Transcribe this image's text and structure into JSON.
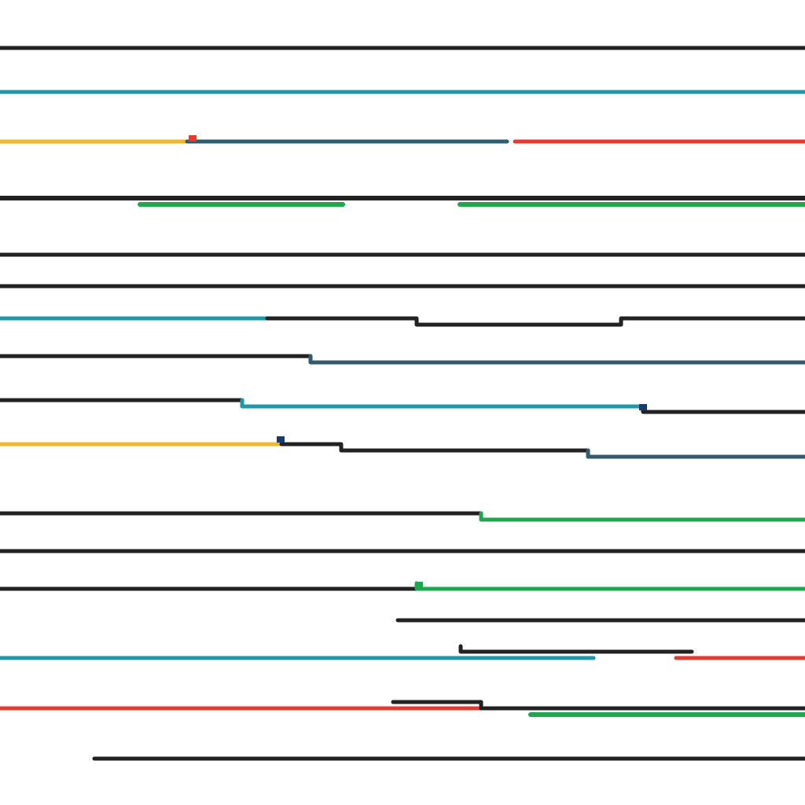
{
  "palette": {
    "black": "#222222",
    "teal": "#1E99A6",
    "yellow": "#F5B52A",
    "slate": "#2F5D6E",
    "red": "#E8392E",
    "green": "#1FA84B",
    "navy": "#1B3A6B"
  },
  "lines": [
    {
      "id": "line-1",
      "segments": [
        "black"
      ]
    },
    {
      "id": "line-2",
      "segments": [
        "teal"
      ]
    },
    {
      "id": "line-3",
      "segments": [
        "yellow",
        "slate",
        "red"
      ]
    },
    {
      "id": "line-4",
      "segments": [
        "black",
        "green",
        "green"
      ]
    },
    {
      "id": "line-5",
      "segments": [
        "black"
      ]
    },
    {
      "id": "line-6",
      "segments": [
        "black"
      ]
    },
    {
      "id": "line-7",
      "segments": [
        "teal",
        "black"
      ]
    },
    {
      "id": "line-8",
      "segments": [
        "black",
        "slate"
      ]
    },
    {
      "id": "line-9",
      "segments": [
        "black",
        "teal",
        "black"
      ]
    },
    {
      "id": "line-10",
      "segments": [
        "yellow",
        "black",
        "slate"
      ]
    },
    {
      "id": "line-11",
      "segments": [
        "black",
        "green"
      ]
    },
    {
      "id": "line-12",
      "segments": [
        "black"
      ]
    },
    {
      "id": "line-13",
      "segments": [
        "black",
        "green"
      ]
    },
    {
      "id": "line-14",
      "segments": [
        "black"
      ]
    },
    {
      "id": "line-15",
      "segments": [
        "teal",
        "black",
        "red"
      ]
    },
    {
      "id": "line-16",
      "segments": [
        "red",
        "black",
        "green"
      ]
    },
    {
      "id": "line-17",
      "segments": [
        "black"
      ]
    }
  ]
}
